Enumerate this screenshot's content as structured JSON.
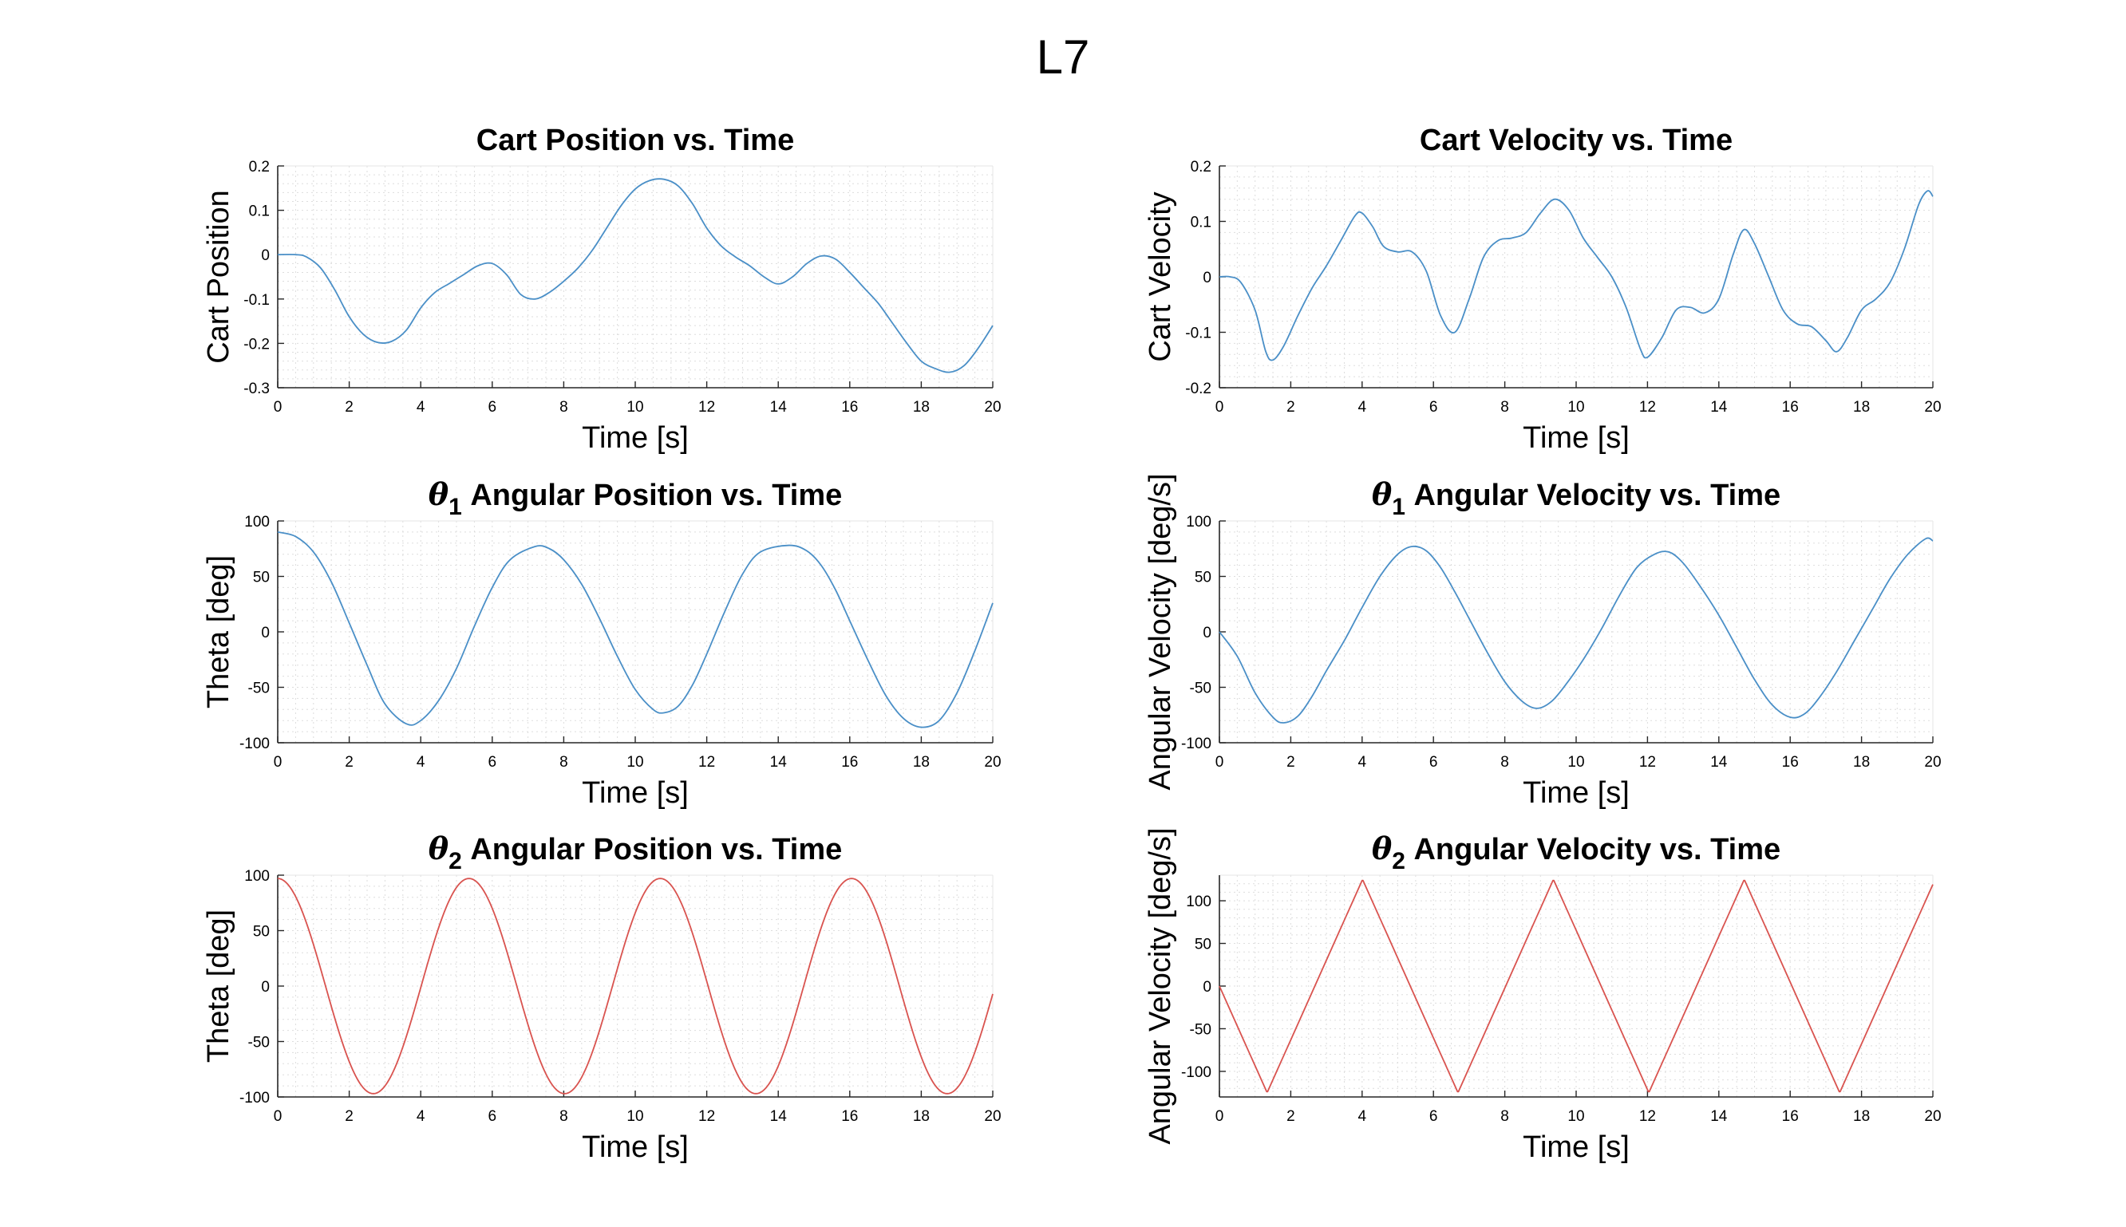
{
  "figure": {
    "title": "L7",
    "background": "#ffffff",
    "series_colors": {
      "blue": "#4a8fc7",
      "red": "#d9534f"
    }
  },
  "chart_data": [
    {
      "type": "line",
      "title": "Cart Position vs. Time",
      "xlabel": "Time [s]",
      "ylabel": "Cart Position",
      "xlim": [
        0,
        20
      ],
      "ylim": [
        -0.3,
        0.2
      ],
      "xticks": [
        0,
        2,
        4,
        6,
        8,
        10,
        12,
        14,
        16,
        18,
        20
      ],
      "yticks": [
        -0.3,
        -0.2,
        -0.1,
        0,
        0.1,
        0.2
      ],
      "grid": true,
      "grid_style": "dotted minor grid",
      "color": "#4a8fc7",
      "series": [
        {
          "x": [
            0,
            0.5,
            0.8,
            1.2,
            1.6,
            2.0,
            2.4,
            2.8,
            3.2,
            3.6,
            4.0,
            4.4,
            4.8,
            5.2,
            5.6,
            6.0,
            6.4,
            6.8,
            7.2,
            7.6,
            8.0,
            8.4,
            8.8,
            9.2,
            9.6,
            10.0,
            10.4,
            10.8,
            11.2,
            11.6,
            12.0,
            12.4,
            12.8,
            13.2,
            13.6,
            14.0,
            14.4,
            14.8,
            15.2,
            15.6,
            16.0,
            16.4,
            16.8,
            17.2,
            17.6,
            18.0,
            18.4,
            18.8,
            19.2,
            19.6,
            20.0
          ],
          "y": [
            0.0,
            0.0,
            -0.005,
            -0.03,
            -0.08,
            -0.14,
            -0.18,
            -0.198,
            -0.195,
            -0.17,
            -0.12,
            -0.085,
            -0.065,
            -0.045,
            -0.025,
            -0.02,
            -0.045,
            -0.09,
            -0.1,
            -0.085,
            -0.06,
            -0.03,
            0.01,
            0.06,
            0.11,
            0.148,
            0.167,
            0.17,
            0.155,
            0.115,
            0.06,
            0.02,
            -0.005,
            -0.025,
            -0.05,
            -0.066,
            -0.05,
            -0.02,
            -0.003,
            -0.01,
            -0.04,
            -0.075,
            -0.11,
            -0.155,
            -0.2,
            -0.24,
            -0.257,
            -0.265,
            -0.25,
            -0.21,
            -0.16
          ]
        }
      ]
    },
    {
      "type": "line",
      "title": "Cart Velocity vs. Time",
      "xlabel": "Time [s]",
      "ylabel": "Cart Velocity",
      "xlim": [
        0,
        20
      ],
      "ylim": [
        -0.2,
        0.2
      ],
      "xticks": [
        0,
        2,
        4,
        6,
        8,
        10,
        12,
        14,
        16,
        18,
        20
      ],
      "yticks": [
        -0.2,
        -0.1,
        0,
        0.1,
        0.2
      ],
      "grid": true,
      "grid_style": "dotted minor grid",
      "color": "#4a8fc7",
      "series": [
        {
          "x": [
            0,
            0.3,
            0.6,
            1.0,
            1.3,
            1.5,
            1.8,
            2.2,
            2.6,
            3.0,
            3.4,
            3.8,
            4.0,
            4.3,
            4.6,
            5.0,
            5.4,
            5.8,
            6.2,
            6.6,
            7.0,
            7.4,
            7.8,
            8.2,
            8.6,
            9.0,
            9.4,
            9.8,
            10.2,
            10.6,
            11.0,
            11.4,
            11.8,
            12.0,
            12.4,
            12.8,
            13.2,
            13.6,
            14.0,
            14.4,
            14.7,
            15.0,
            15.4,
            15.8,
            16.2,
            16.6,
            17.0,
            17.3,
            17.6,
            18.0,
            18.4,
            18.8,
            19.2,
            19.6,
            19.85,
            20.0
          ],
          "y": [
            0.0,
            0.0,
            -0.01,
            -0.06,
            -0.135,
            -0.15,
            -0.125,
            -0.07,
            -0.02,
            0.02,
            0.065,
            0.11,
            0.115,
            0.09,
            0.055,
            0.045,
            0.045,
            0.01,
            -0.07,
            -0.1,
            -0.04,
            0.035,
            0.065,
            0.07,
            0.08,
            0.115,
            0.14,
            0.12,
            0.07,
            0.035,
            0.0,
            -0.055,
            -0.13,
            -0.145,
            -0.11,
            -0.06,
            -0.055,
            -0.065,
            -0.04,
            0.04,
            0.085,
            0.06,
            0.0,
            -0.06,
            -0.085,
            -0.09,
            -0.115,
            -0.135,
            -0.11,
            -0.06,
            -0.04,
            -0.01,
            0.05,
            0.13,
            0.155,
            0.145
          ]
        }
      ]
    },
    {
      "type": "line",
      "title_symbol": "θ",
      "title_subscript": "1",
      "title_rest": "Angular Position vs. Time",
      "xlabel": "Time [s]",
      "ylabel": "Theta [deg]",
      "xlim": [
        0,
        20
      ],
      "ylim": [
        -100,
        100
      ],
      "xticks": [
        0,
        2,
        4,
        6,
        8,
        10,
        12,
        14,
        16,
        18,
        20
      ],
      "yticks": [
        -100,
        -50,
        0,
        50,
        100
      ],
      "grid": true,
      "grid_style": "dotted minor grid",
      "color": "#4a8fc7",
      "series": [
        {
          "x": [
            0,
            0.5,
            1.0,
            1.5,
            2.0,
            2.5,
            3.0,
            3.6,
            4.0,
            4.5,
            5.0,
            5.5,
            6.0,
            6.5,
            7.2,
            7.6,
            8.0,
            8.5,
            9.0,
            9.5,
            10.0,
            10.5,
            10.8,
            11.2,
            11.6,
            12.0,
            12.5,
            13.0,
            13.5,
            14.3,
            14.8,
            15.2,
            15.6,
            16.0,
            16.5,
            17.0,
            17.5,
            18.0,
            18.5,
            19.0,
            19.5,
            20.0
          ],
          "y": [
            90,
            86,
            72,
            45,
            8,
            -30,
            -65,
            -83,
            -80,
            -62,
            -33,
            5,
            40,
            65,
            77,
            75,
            65,
            43,
            12,
            -22,
            -52,
            -70,
            -73,
            -67,
            -48,
            -20,
            18,
            52,
            72,
            78,
            73,
            60,
            38,
            10,
            -25,
            -57,
            -78,
            -86,
            -80,
            -55,
            -17,
            26
          ]
        }
      ]
    },
    {
      "type": "line",
      "title_symbol": "θ",
      "title_subscript": "1",
      "title_rest": "Angular Velocity vs. Time",
      "xlabel": "Time [s]",
      "ylabel": "Angular Velocity [deg/s]",
      "xlim": [
        0,
        20
      ],
      "ylim": [
        -100,
        100
      ],
      "xticks": [
        0,
        2,
        4,
        6,
        8,
        10,
        12,
        14,
        16,
        18,
        20
      ],
      "yticks": [
        -100,
        -50,
        0,
        50,
        100
      ],
      "grid": true,
      "grid_style": "dotted minor grid",
      "color": "#4a8fc7",
      "series": [
        {
          "x": [
            0,
            0.5,
            1.0,
            1.5,
            1.8,
            2.2,
            2.6,
            3.0,
            3.5,
            4.0,
            4.5,
            5.0,
            5.4,
            5.8,
            6.2,
            6.6,
            7.0,
            7.5,
            8.0,
            8.5,
            8.9,
            9.3,
            9.7,
            10.2,
            10.7,
            11.2,
            11.7,
            12.2,
            12.6,
            13.0,
            13.5,
            14.0,
            14.5,
            15.0,
            15.5,
            16.0,
            16.4,
            16.8,
            17.3,
            17.8,
            18.3,
            18.8,
            19.3,
            19.8,
            20.0
          ],
          "y": [
            0,
            -22,
            -55,
            -77,
            -82,
            -76,
            -58,
            -35,
            -8,
            22,
            50,
            70,
            77,
            73,
            58,
            36,
            12,
            -18,
            -45,
            -63,
            -69,
            -63,
            -48,
            -25,
            2,
            32,
            58,
            70,
            72,
            62,
            40,
            15,
            -14,
            -43,
            -66,
            -77,
            -74,
            -60,
            -36,
            -8,
            20,
            48,
            70,
            84,
            82
          ]
        }
      ]
    },
    {
      "type": "line",
      "title_symbol": "θ",
      "title_subscript": "2",
      "title_rest": "Angular Position vs. Time",
      "xlabel": "Time [s]",
      "ylabel": "Theta [deg]",
      "xlim": [
        0,
        20
      ],
      "ylim": [
        -100,
        100
      ],
      "xticks": [
        0,
        2,
        4,
        6,
        8,
        10,
        12,
        14,
        16,
        18,
        20
      ],
      "yticks": [
        -100,
        -50,
        0,
        50,
        100
      ],
      "grid": true,
      "grid_style": "dotted minor grid",
      "color": "#d9534f",
      "series": [
        {
          "fn": "cosine",
          "amplitude": 97,
          "period": 5.35,
          "x_start": 0,
          "x_end": 20
        }
      ]
    },
    {
      "type": "line",
      "title_symbol": "θ",
      "title_subscript": "2",
      "title_rest": "Angular Velocity vs. Time",
      "xlabel": "Time [s]",
      "ylabel": "Angular Velocity [deg/s]",
      "xlim": [
        0,
        20
      ],
      "ylim": [
        -130,
        130
      ],
      "xticks": [
        0,
        2,
        4,
        6,
        8,
        10,
        12,
        14,
        16,
        18,
        20
      ],
      "yticks": [
        -100,
        -50,
        0,
        50,
        100
      ],
      "grid": true,
      "grid_style": "dotted minor grid",
      "color": "#d9534f",
      "series": [
        {
          "fn": "triangle",
          "amplitude": 125,
          "period": 5.35,
          "x_start": 0,
          "x_end": 20
        }
      ]
    }
  ]
}
